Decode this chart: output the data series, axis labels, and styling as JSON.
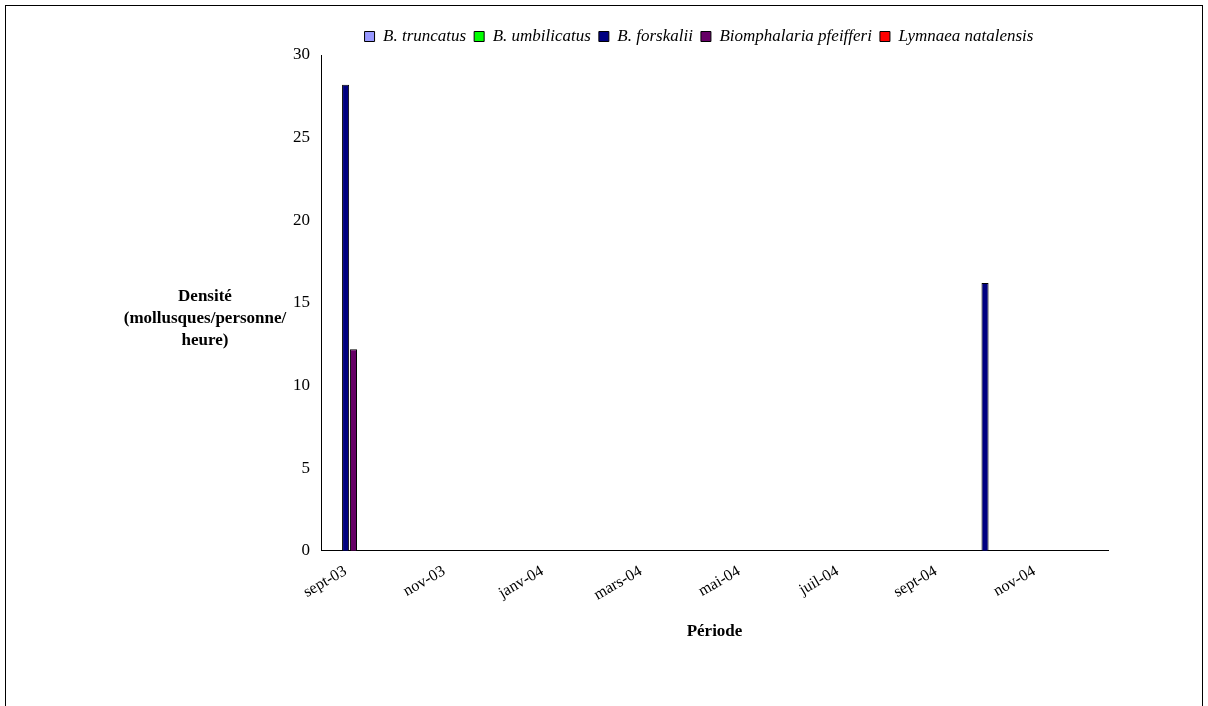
{
  "chart_data": {
    "type": "bar",
    "xlabel": "Période",
    "ylabel": "Densité (mollusques/personne/ heure)",
    "categories": [
      "sept-03",
      null,
      "nov-03",
      null,
      "janv-04",
      null,
      "mars-04",
      null,
      "mai-04",
      null,
      "juil-04",
      null,
      "sept-04",
      null,
      "nov-04",
      null
    ],
    "series": [
      {
        "name": "B. truncatus",
        "color": "#9999ff",
        "values": [
          0,
          0,
          0,
          0,
          0,
          0,
          0,
          null,
          0,
          0,
          0,
          0,
          0,
          0,
          0,
          0
        ]
      },
      {
        "name": "B. umbilicatus",
        "color": "#00ff00",
        "values": [
          0,
          0,
          0,
          0,
          0,
          0,
          0,
          null,
          0,
          0,
          0,
          0,
          0,
          0,
          0,
          0
        ]
      },
      {
        "name": "B. forskalii",
        "color": "#000080",
        "values": [
          28.2,
          0,
          0,
          0,
          0,
          0,
          0,
          null,
          0,
          0,
          0,
          0,
          0,
          16.2,
          0,
          0
        ]
      },
      {
        "name": "Biomphalaria pfeifferi",
        "color": "#660066",
        "values": [
          12.2,
          0,
          0,
          0,
          0,
          0,
          0,
          null,
          0,
          0,
          0,
          0,
          0,
          0,
          0,
          0
        ]
      },
      {
        "name": "Lymnaea natalensis",
        "color": "#ff0000",
        "values": [
          0,
          0,
          0,
          0,
          0,
          0,
          0,
          null,
          0,
          0,
          0,
          0,
          0,
          0,
          0,
          0
        ]
      }
    ],
    "ylim": [
      0,
      30
    ],
    "yticks": [
      0,
      5,
      10,
      15,
      20,
      25,
      30
    ],
    "grid": false,
    "legend": "top"
  }
}
